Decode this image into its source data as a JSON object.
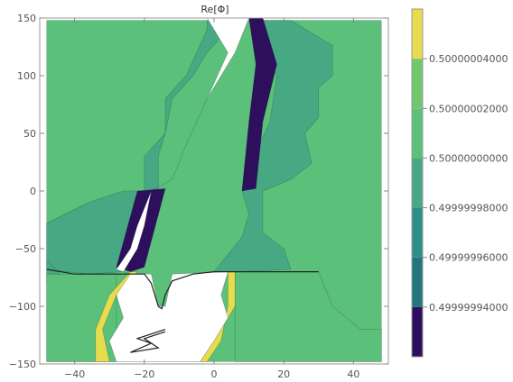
{
  "chart_data": {
    "type": "contour",
    "title": "Re[Φ]",
    "xlabel": "",
    "ylabel": "",
    "xlim": [
      -50,
      50
    ],
    "ylim": [
      -150,
      150
    ],
    "x_ticks": [
      {
        "value": -40,
        "label": "−40"
      },
      {
        "value": -20,
        "label": "−20"
      },
      {
        "value": 0,
        "label": "0"
      },
      {
        "value": 20,
        "label": "20"
      },
      {
        "value": 40,
        "label": "40"
      }
    ],
    "y_ticks": [
      {
        "value": 150,
        "label": "150"
      },
      {
        "value": 100,
        "label": "100"
      },
      {
        "value": 50,
        "label": "50"
      },
      {
        "value": 0,
        "label": "0"
      },
      {
        "value": -50,
        "label": "−50"
      },
      {
        "value": -100,
        "label": "−100"
      },
      {
        "value": -150,
        "label": "−150"
      }
    ],
    "legend": {
      "placement": "right",
      "ticks": [
        {
          "value": 0.50000004,
          "label": "0.50000004000"
        },
        {
          "value": 0.50000002,
          "label": "0.50000002000"
        },
        {
          "value": 0.5,
          "label": "0.50000000000"
        },
        {
          "value": 0.49999998,
          "label": "0.49999998000"
        },
        {
          "value": 0.49999996,
          "label": "0.49999996000"
        },
        {
          "value": 0.49999994,
          "label": "0.49999994000"
        }
      ],
      "bands": [
        {
          "color": "#2e0f5e",
          "from": 0.49999992,
          "to": 0.49999994
        },
        {
          "color": "#22767c",
          "from": 0.49999994,
          "to": 0.49999996
        },
        {
          "color": "#2f8e86",
          "from": 0.49999996,
          "to": 0.49999998
        },
        {
          "color": "#47a983",
          "from": 0.49999998,
          "to": 0.5
        },
        {
          "color": "#5bc07a",
          "from": 0.5,
          "to": 0.50000002
        },
        {
          "color": "#72c76e",
          "from": 0.50000002,
          "to": 0.50000004
        },
        {
          "color": "#e6dc4e",
          "from": 0.50000004,
          "to": 0.50000006
        }
      ]
    },
    "regions": [
      {
        "level": 0.5,
        "color": "#5bc07a",
        "polygon": [
          [
            -48,
            148
          ],
          [
            48,
            148
          ],
          [
            48,
            -148
          ],
          [
            -48,
            -148
          ]
        ]
      },
      {
        "level": 0.49999998,
        "color": "#47a983",
        "polygon": [
          [
            -48,
            -42
          ],
          [
            -48,
            -28
          ],
          [
            -36,
            -10
          ],
          [
            -26,
            0
          ],
          [
            -20,
            0
          ],
          [
            -20,
            30
          ],
          [
            -14,
            50
          ],
          [
            -14,
            80
          ],
          [
            -8,
            100
          ],
          [
            -5,
            120
          ],
          [
            -2,
            140
          ],
          [
            -2,
            148
          ],
          [
            4,
            148
          ],
          [
            4,
            140
          ],
          [
            -2,
            120
          ],
          [
            -6,
            100
          ],
          [
            -12,
            80
          ],
          [
            -14,
            50
          ],
          [
            -16,
            30
          ],
          [
            -16,
            0
          ],
          [
            -20,
            -2
          ],
          [
            -22,
            -40
          ],
          [
            -26,
            -70
          ],
          [
            -36,
            -72
          ],
          [
            -48,
            -68
          ]
        ]
      },
      {
        "level": 0.49999998,
        "color": "#47a983",
        "polygon": [
          [
            10,
            148
          ],
          [
            22,
            148
          ],
          [
            34,
            126
          ],
          [
            34,
            100
          ],
          [
            30,
            90
          ],
          [
            30,
            64
          ],
          [
            26,
            50
          ],
          [
            28,
            24
          ],
          [
            22,
            10
          ],
          [
            14,
            0
          ],
          [
            14,
            -36
          ],
          [
            20,
            -50
          ],
          [
            22,
            -68
          ],
          [
            8,
            -70
          ],
          [
            0,
            -70
          ],
          [
            8,
            -40
          ],
          [
            10,
            -20
          ],
          [
            8,
            0
          ],
          [
            10,
            20
          ],
          [
            16,
            60
          ],
          [
            18,
            100
          ],
          [
            14,
            120
          ]
        ]
      },
      {
        "level": 0.49999998,
        "color": "#47a983",
        "polygon": [
          [
            -48,
            -80
          ],
          [
            -44,
            -72
          ],
          [
            -48,
            -60
          ]
        ]
      },
      {
        "level": 0.5,
        "color": "#5bc07a",
        "polygon": [
          [
            -48,
            -72
          ],
          [
            -28,
            -72
          ],
          [
            -28,
            -148
          ],
          [
            -48,
            -148
          ]
        ]
      },
      {
        "level": 0.5,
        "color": "#5bc07a",
        "polygon": [
          [
            6,
            -70
          ],
          [
            30,
            -70
          ],
          [
            34,
            -100
          ],
          [
            42,
            -120
          ],
          [
            48,
            -120
          ],
          [
            48,
            -148
          ],
          [
            6,
            -148
          ]
        ]
      },
      {
        "level": 0.49999994,
        "color": "#2e0f5e",
        "polygon": [
          [
            -22,
            0
          ],
          [
            -14,
            2
          ],
          [
            -20,
            -66
          ],
          [
            -24,
            -70
          ],
          [
            -28,
            -66
          ]
        ]
      },
      {
        "level": 0.49999994,
        "color": "#2e0f5e",
        "polygon": [
          [
            8,
            0
          ],
          [
            12,
            2
          ],
          [
            14,
            60
          ],
          [
            18,
            110
          ],
          [
            14,
            150
          ],
          [
            10,
            150
          ],
          [
            12,
            110
          ],
          [
            10,
            60
          ]
        ]
      },
      {
        "level": 0.50000004,
        "color": "#e6dc4e",
        "polygon": [
          [
            -24,
            -70
          ],
          [
            -22,
            -70
          ],
          [
            -28,
            -90
          ],
          [
            -32,
            -120
          ],
          [
            -30,
            -148
          ],
          [
            -34,
            -148
          ],
          [
            -34,
            -120
          ],
          [
            -30,
            -90
          ]
        ]
      },
      {
        "level": 0.50000004,
        "color": "#e6dc4e",
        "polygon": [
          [
            4,
            -70
          ],
          [
            6,
            -70
          ],
          [
            6,
            -100
          ],
          [
            0,
            -130
          ],
          [
            -4,
            -148
          ],
          [
            -2,
            -148
          ],
          [
            2,
            -130
          ],
          [
            4,
            -100
          ]
        ]
      },
      {
        "level": "excluded",
        "color": "#ffffff",
        "polygon": [
          [
            -2,
            150
          ],
          [
            10,
            150
          ],
          [
            6,
            120
          ],
          [
            -2,
            80
          ],
          [
            -8,
            40
          ],
          [
            -12,
            10
          ],
          [
            -18,
            0
          ],
          [
            -20,
            -30
          ],
          [
            -22,
            -50
          ],
          [
            -26,
            -70
          ],
          [
            -24,
            -72
          ],
          [
            -18,
            -72
          ],
          [
            -16,
            -100
          ],
          [
            -14,
            -100
          ],
          [
            -12,
            -72
          ],
          [
            4,
            -70
          ],
          [
            2,
            -90
          ],
          [
            4,
            -110
          ],
          [
            0,
            -130
          ],
          [
            -4,
            -148
          ],
          [
            -28,
            -148
          ],
          [
            -30,
            -130
          ],
          [
            -26,
            -110
          ],
          [
            -28,
            -90
          ],
          [
            -24,
            -72
          ],
          [
            -28,
            -68
          ],
          [
            -24,
            -50
          ],
          [
            -22,
            -30
          ],
          [
            -18,
            0
          ],
          [
            -12,
            10
          ],
          [
            -8,
            40
          ],
          [
            -2,
            80
          ],
          [
            4,
            120
          ]
        ]
      }
    ],
    "contour_lines": [
      {
        "color": "#222222",
        "points": [
          [
            -48,
            -68
          ],
          [
            -40,
            -72
          ],
          [
            -32,
            -72
          ],
          [
            -26,
            -72
          ],
          [
            -20,
            -72
          ],
          [
            -18,
            -80
          ],
          [
            -16,
            -100
          ],
          [
            -15,
            -102
          ],
          [
            -14,
            -90
          ],
          [
            -12,
            -78
          ],
          [
            -6,
            -72
          ],
          [
            0,
            -70
          ],
          [
            6,
            -70
          ],
          [
            12,
            -70
          ],
          [
            20,
            -70
          ],
          [
            30,
            -70
          ]
        ]
      },
      {
        "color": "#222222",
        "points": [
          [
            -14,
            -120
          ],
          [
            -22,
            -128
          ],
          [
            -18,
            -132
          ],
          [
            -24,
            -140
          ],
          [
            -16,
            -136
          ],
          [
            -20,
            -128
          ],
          [
            -14,
            -122
          ]
        ]
      }
    ]
  }
}
